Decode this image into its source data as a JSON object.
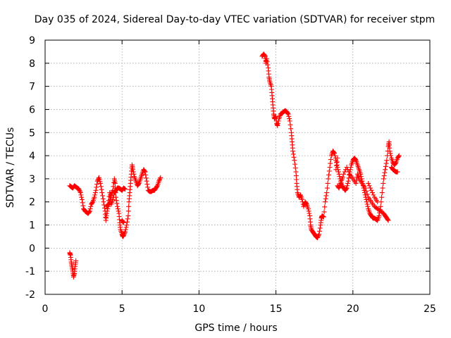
{
  "chart_data": {
    "type": "scatter",
    "title": "Day 035 of 2024, Sidereal Day-to-day VTEC variation (SDTVAR) for receiver stpm",
    "xlabel": "GPS time / hours",
    "ylabel": "SDTVAR / TECUs",
    "xlim": [
      0,
      25
    ],
    "ylim": [
      -2,
      9
    ],
    "xticks": [
      "0",
      "5",
      "10",
      "15",
      "20",
      "25"
    ],
    "yticks": [
      "-2",
      "-1",
      "0",
      "1",
      "2",
      "3",
      "4",
      "5",
      "6",
      "7",
      "8",
      "9"
    ],
    "grid": true,
    "marker": "plus",
    "color": "#ff0000",
    "series": [
      {
        "name": "SDTVAR",
        "points": [
          [
            1.6,
            -0.2
          ],
          [
            1.65,
            -0.3
          ],
          [
            1.7,
            -0.6
          ],
          [
            1.75,
            -0.8
          ],
          [
            1.8,
            -1.0
          ],
          [
            1.85,
            -1.25
          ],
          [
            1.9,
            -1.1
          ],
          [
            1.95,
            -0.8
          ],
          [
            2.0,
            -0.55
          ],
          [
            1.6,
            2.7
          ],
          [
            1.7,
            2.65
          ],
          [
            1.8,
            2.6
          ],
          [
            1.9,
            2.7
          ],
          [
            2.0,
            2.65
          ],
          [
            2.1,
            2.6
          ],
          [
            2.2,
            2.55
          ],
          [
            2.3,
            2.4
          ],
          [
            2.4,
            2.1
          ],
          [
            2.5,
            1.7
          ],
          [
            2.6,
            1.6
          ],
          [
            2.7,
            1.55
          ],
          [
            2.8,
            1.5
          ],
          [
            2.9,
            1.6
          ],
          [
            3.0,
            1.9
          ],
          [
            3.1,
            2.0
          ],
          [
            3.2,
            2.2
          ],
          [
            3.3,
            2.5
          ],
          [
            3.4,
            2.9
          ],
          [
            3.5,
            3.05
          ],
          [
            3.6,
            2.8
          ],
          [
            3.7,
            2.4
          ],
          [
            3.8,
            2.0
          ],
          [
            3.9,
            1.6
          ],
          [
            3.95,
            1.2
          ],
          [
            4.0,
            1.5
          ],
          [
            4.1,
            1.8
          ],
          [
            4.2,
            2.0
          ],
          [
            4.3,
            2.3
          ],
          [
            4.4,
            2.5
          ],
          [
            4.5,
            3.0
          ],
          [
            4.55,
            2.8
          ],
          [
            4.6,
            2.2
          ],
          [
            4.7,
            1.8
          ],
          [
            4.8,
            1.5
          ],
          [
            4.85,
            1.1
          ],
          [
            4.9,
            0.8
          ],
          [
            5.0,
            0.6
          ],
          [
            5.05,
            0.5
          ],
          [
            5.1,
            0.55
          ],
          [
            5.2,
            0.7
          ],
          [
            5.3,
            1.0
          ],
          [
            5.4,
            1.4
          ],
          [
            5.45,
            2.0
          ],
          [
            5.5,
            2.4
          ],
          [
            5.55,
            2.8
          ],
          [
            5.6,
            3.2
          ],
          [
            5.65,
            3.6
          ],
          [
            5.7,
            3.4
          ],
          [
            5.8,
            3.1
          ],
          [
            5.9,
            2.9
          ],
          [
            6.0,
            2.7
          ],
          [
            6.1,
            2.8
          ],
          [
            6.2,
            3.0
          ],
          [
            6.3,
            3.2
          ],
          [
            6.4,
            3.4
          ],
          [
            6.5,
            3.3
          ],
          [
            6.6,
            2.9
          ],
          [
            6.7,
            2.5
          ],
          [
            6.8,
            2.45
          ],
          [
            6.9,
            2.45
          ],
          [
            7.0,
            2.5
          ],
          [
            7.1,
            2.5
          ],
          [
            7.2,
            2.6
          ],
          [
            7.3,
            2.7
          ],
          [
            7.4,
            2.9
          ],
          [
            7.5,
            3.05
          ],
          [
            4.3,
            1.9
          ],
          [
            4.4,
            2.1
          ],
          [
            4.5,
            2.4
          ],
          [
            4.6,
            2.5
          ],
          [
            4.7,
            2.6
          ],
          [
            4.8,
            2.6
          ],
          [
            4.9,
            2.55
          ],
          [
            5.0,
            2.5
          ],
          [
            5.1,
            2.6
          ],
          [
            5.2,
            2.55
          ],
          [
            4.0,
            1.8
          ],
          [
            4.1,
            1.9
          ],
          [
            4.2,
            2.4
          ],
          [
            4.3,
            2.2
          ],
          [
            5.0,
            1.2
          ],
          [
            5.1,
            1.1
          ],
          [
            14.1,
            8.3
          ],
          [
            14.2,
            8.4
          ],
          [
            14.3,
            8.3
          ],
          [
            14.35,
            8.0
          ],
          [
            14.4,
            8.2
          ],
          [
            14.5,
            7.8
          ],
          [
            14.55,
            7.4
          ],
          [
            14.6,
            7.2
          ],
          [
            14.7,
            7.0
          ],
          [
            14.75,
            6.6
          ],
          [
            14.8,
            6.2
          ],
          [
            14.85,
            5.8
          ],
          [
            14.9,
            5.6
          ],
          [
            15.0,
            5.7
          ],
          [
            15.05,
            5.4
          ],
          [
            15.1,
            5.3
          ],
          [
            15.2,
            5.6
          ],
          [
            15.3,
            5.8
          ],
          [
            15.4,
            5.85
          ],
          [
            15.5,
            5.9
          ],
          [
            15.6,
            5.95
          ],
          [
            15.7,
            5.9
          ],
          [
            15.8,
            5.8
          ],
          [
            15.9,
            5.5
          ],
          [
            16.0,
            5.0
          ],
          [
            16.05,
            4.6
          ],
          [
            16.1,
            4.2
          ],
          [
            16.2,
            3.8
          ],
          [
            16.3,
            3.3
          ],
          [
            16.35,
            2.8
          ],
          [
            16.4,
            2.4
          ],
          [
            16.5,
            2.2
          ],
          [
            16.6,
            2.3
          ],
          [
            16.7,
            2.1
          ],
          [
            16.8,
            1.8
          ],
          [
            16.9,
            2.0
          ],
          [
            17.0,
            1.9
          ],
          [
            17.1,
            1.7
          ],
          [
            17.2,
            1.4
          ],
          [
            17.25,
            1.0
          ],
          [
            17.3,
            0.8
          ],
          [
            17.4,
            0.7
          ],
          [
            17.5,
            0.6
          ],
          [
            17.6,
            0.5
          ],
          [
            17.7,
            0.45
          ],
          [
            17.8,
            0.6
          ],
          [
            17.9,
            1.0
          ],
          [
            17.95,
            1.3
          ],
          [
            18.0,
            1.4
          ],
          [
            18.1,
            1.35
          ],
          [
            18.2,
            2.0
          ],
          [
            18.3,
            2.4
          ],
          [
            18.4,
            3.0
          ],
          [
            18.5,
            3.5
          ],
          [
            18.6,
            4.0
          ],
          [
            18.7,
            4.2
          ],
          [
            18.8,
            4.1
          ],
          [
            18.9,
            3.8
          ],
          [
            19.0,
            3.5
          ],
          [
            19.1,
            3.2
          ],
          [
            19.2,
            2.9
          ],
          [
            19.3,
            2.7
          ],
          [
            19.4,
            2.6
          ],
          [
            19.5,
            2.5
          ],
          [
            19.6,
            2.6
          ],
          [
            19.7,
            2.9
          ],
          [
            19.8,
            3.3
          ],
          [
            19.9,
            3.6
          ],
          [
            20.0,
            3.8
          ],
          [
            20.1,
            3.9
          ],
          [
            20.2,
            3.8
          ],
          [
            20.3,
            3.6
          ],
          [
            20.4,
            3.4
          ],
          [
            20.5,
            3.2
          ],
          [
            20.6,
            2.9
          ],
          [
            20.7,
            2.6
          ],
          [
            20.8,
            2.3
          ],
          [
            20.9,
            2.0
          ],
          [
            21.0,
            1.7
          ],
          [
            21.1,
            1.5
          ],
          [
            21.2,
            1.4
          ],
          [
            21.3,
            1.3
          ],
          [
            21.4,
            1.3
          ],
          [
            21.5,
            1.25
          ],
          [
            21.6,
            1.2
          ],
          [
            21.7,
            1.4
          ],
          [
            21.8,
            1.8
          ],
          [
            21.9,
            2.4
          ],
          [
            22.0,
            3.0
          ],
          [
            22.1,
            3.4
          ],
          [
            22.2,
            3.8
          ],
          [
            22.3,
            4.4
          ],
          [
            22.35,
            4.6
          ],
          [
            22.4,
            4.2
          ],
          [
            22.5,
            3.9
          ],
          [
            22.6,
            3.7
          ],
          [
            22.7,
            3.6
          ],
          [
            22.8,
            3.7
          ],
          [
            22.9,
            3.9
          ],
          [
            23.0,
            4.0
          ],
          [
            22.5,
            3.5
          ],
          [
            22.6,
            3.4
          ],
          [
            22.7,
            3.35
          ],
          [
            22.8,
            3.3
          ],
          [
            22.9,
            3.3
          ],
          [
            19.0,
            2.7
          ],
          [
            19.1,
            2.6
          ],
          [
            19.2,
            2.8
          ],
          [
            19.4,
            3.2
          ],
          [
            19.6,
            3.5
          ],
          [
            19.8,
            3.2
          ],
          [
            20.0,
            3.0
          ],
          [
            20.2,
            2.8
          ],
          [
            20.3,
            3.2
          ],
          [
            20.4,
            3.0
          ],
          [
            20.6,
            2.8
          ],
          [
            20.8,
            2.6
          ],
          [
            21.0,
            2.2
          ],
          [
            21.2,
            2.0
          ],
          [
            21.4,
            1.8
          ],
          [
            21.6,
            1.7
          ],
          [
            21.8,
            1.6
          ],
          [
            22.0,
            1.5
          ],
          [
            22.1,
            1.4
          ],
          [
            22.2,
            1.3
          ],
          [
            22.3,
            1.2
          ],
          [
            21.0,
            2.8
          ],
          [
            21.2,
            2.5
          ],
          [
            21.4,
            2.2
          ],
          [
            21.6,
            2.0
          ],
          [
            18.9,
            3.4
          ],
          [
            19.0,
            3.9
          ],
          [
            19.3,
            3.0
          ]
        ]
      }
    ]
  }
}
